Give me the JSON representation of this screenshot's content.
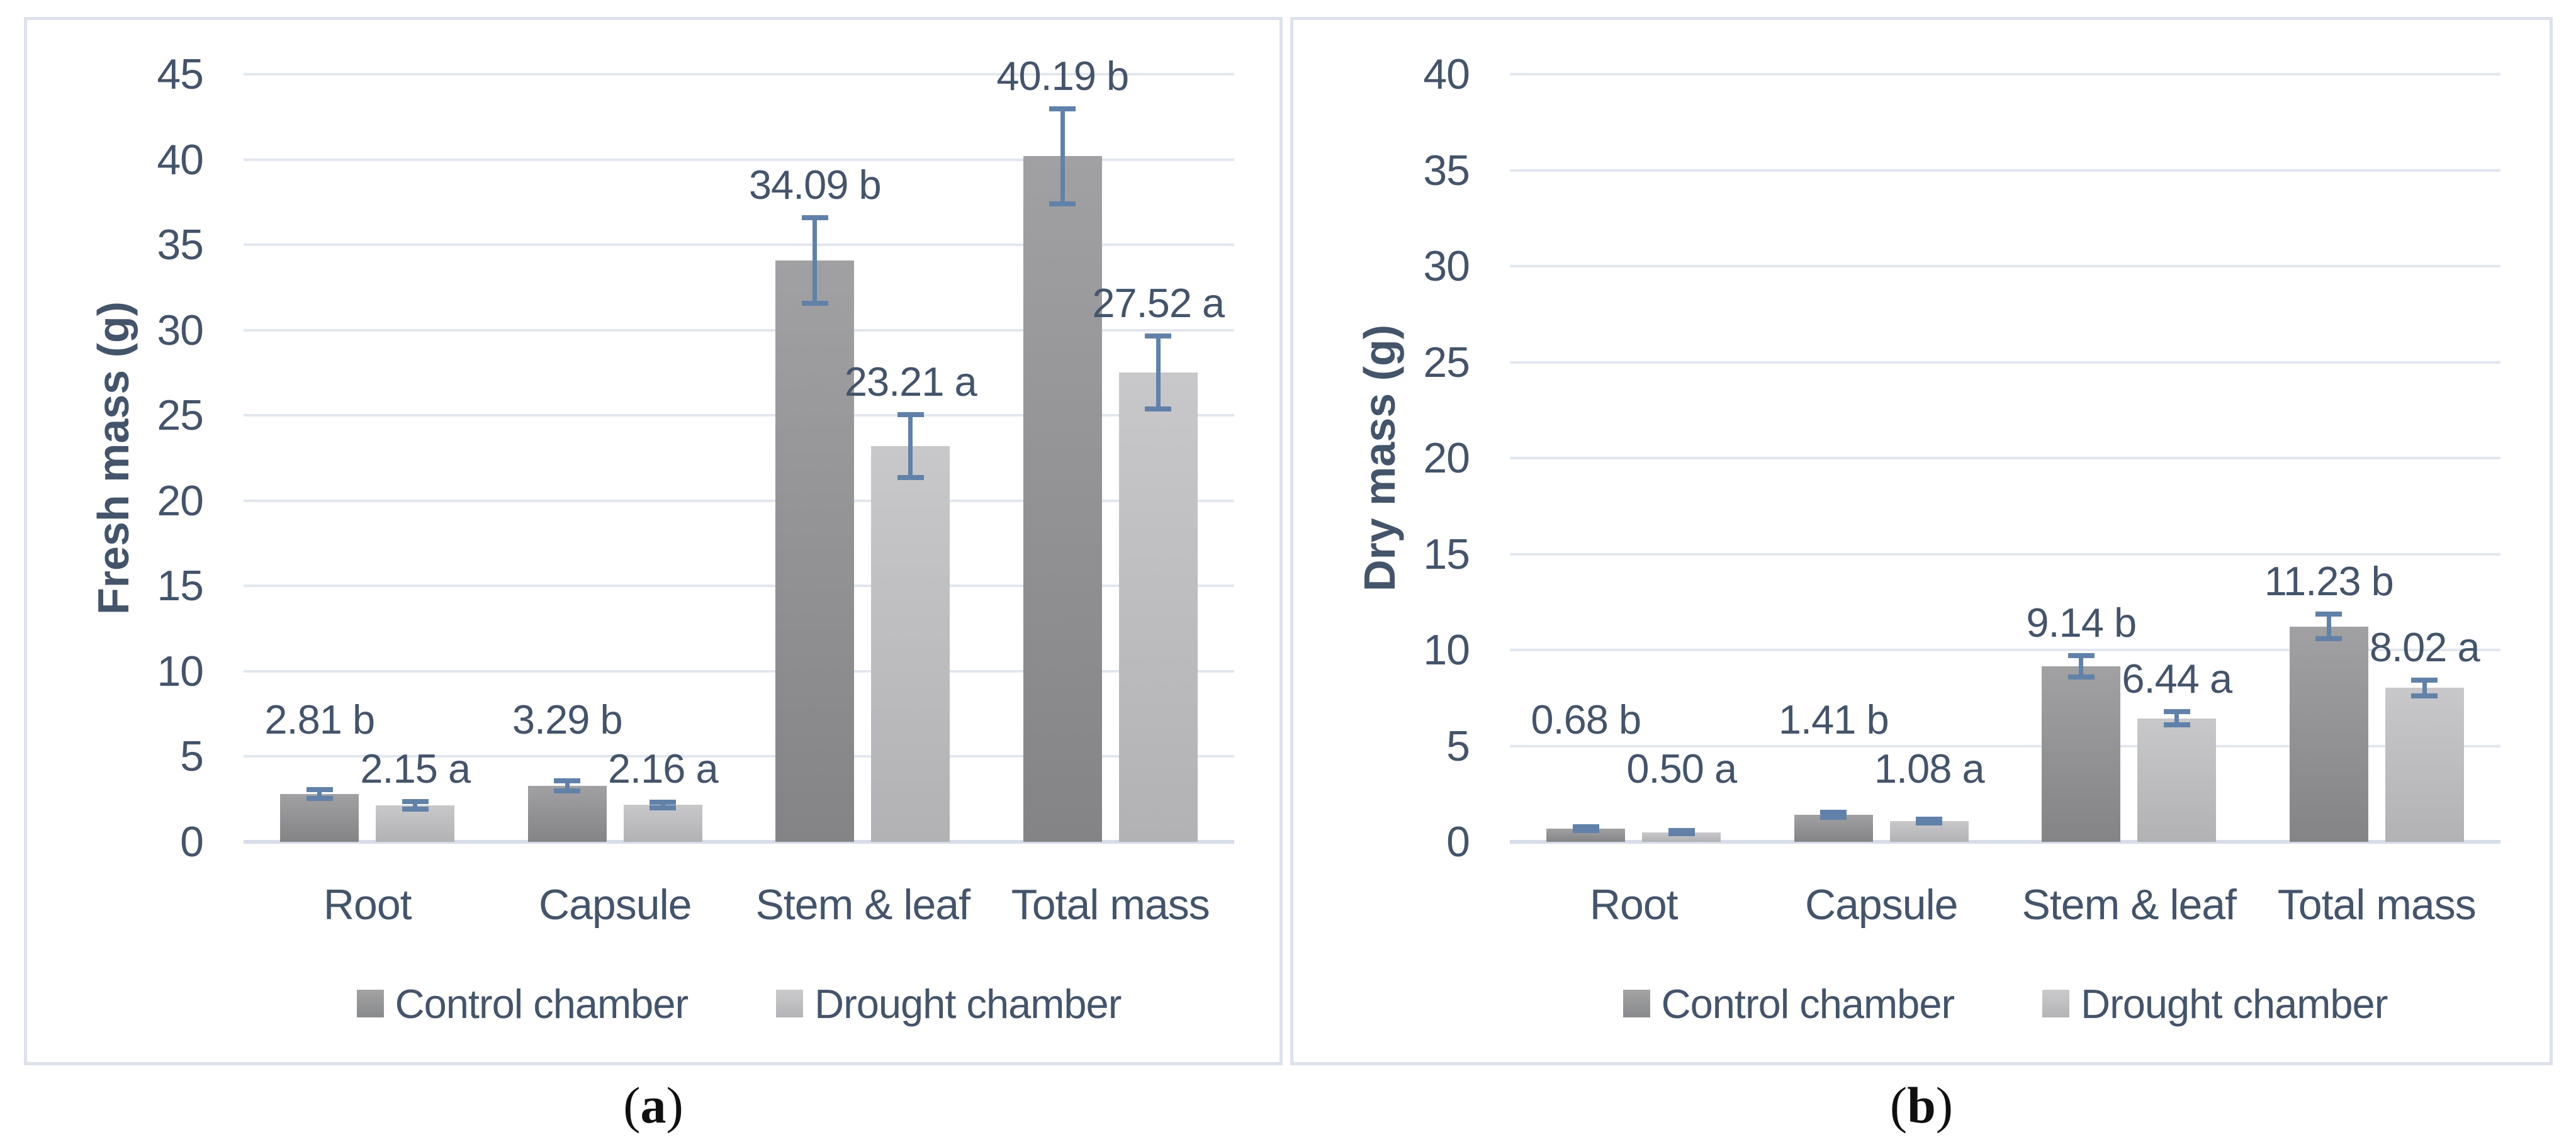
{
  "figure": {
    "background": "#ffffff",
    "text_color": "#44546a",
    "grid_color": "#e2e6ef",
    "axis_line_color": "#d6dce8",
    "panel_border_color": "#dde1eb",
    "error_bar_color": "#6181a9",
    "control_bar_color_top": "#a1a1a3",
    "control_bar_color_bottom": "#848486",
    "drought_bar_color_top": "#c8c8ca",
    "drought_bar_color_bottom": "#b2b2b4",
    "captions": [
      {
        "open": "(",
        "letter": "a",
        "close": ")"
      },
      {
        "open": "(",
        "letter": "b",
        "close": ")"
      }
    ]
  },
  "chart_data": [
    {
      "type": "bar",
      "title": "",
      "xlabel": "",
      "ylabel": "Fresh mass (g)",
      "ylim": [
        0,
        45
      ],
      "ytick_step": 5,
      "ytick_labels": [
        "45",
        "40",
        "35",
        "30",
        "25",
        "20",
        "15",
        "10",
        "5",
        "0"
      ],
      "grid": "horizontal",
      "legend_position": "bottom",
      "categories": [
        "Root",
        "Capsule",
        "Stem & leaf",
        "Total mass"
      ],
      "series": [
        {
          "name": "Control chamber",
          "values": [
            2.81,
            3.29,
            34.09,
            40.19
          ],
          "errors": [
            0.25,
            0.3,
            2.5,
            2.8
          ],
          "data_labels": [
            "2.81 b",
            "3.29 b",
            "34.09 b",
            "40.19 b"
          ]
        },
        {
          "name": "Drought chamber",
          "values": [
            2.15,
            2.16,
            23.21,
            27.52
          ],
          "errors": [
            0.22,
            0.18,
            1.85,
            2.15
          ],
          "data_labels": [
            "2.15 a",
            "2.16 a",
            "23.21 a",
            "27.52 a"
          ]
        }
      ],
      "panel_label": "(a)"
    },
    {
      "type": "bar",
      "title": "",
      "xlabel": "",
      "ylabel": "Dry mass (g)",
      "ylim": [
        0,
        40
      ],
      "ytick_step": 5,
      "ytick_labels": [
        "40",
        "35",
        "30",
        "25",
        "20",
        "15",
        "10",
        "5",
        "0"
      ],
      "grid": "horizontal",
      "legend_position": "bottom",
      "categories": [
        "Root",
        "Capsule",
        "Stem & leaf",
        "Total mass"
      ],
      "series": [
        {
          "name": "Control chamber",
          "values": [
            0.68,
            1.41,
            9.14,
            11.23
          ],
          "errors": [
            0.1,
            0.12,
            0.55,
            0.65
          ],
          "data_labels": [
            "0.68 b",
            "1.41 b",
            "9.14 b",
            "11.23 b"
          ]
        },
        {
          "name": "Drought chamber",
          "values": [
            0.5,
            1.08,
            6.44,
            8.02
          ],
          "errors": [
            0.08,
            0.1,
            0.35,
            0.4
          ],
          "data_labels": [
            "0.50 a",
            "1.08 a",
            "6.44 a",
            "8.02 a"
          ]
        }
      ],
      "panel_label": "(b)"
    }
  ]
}
